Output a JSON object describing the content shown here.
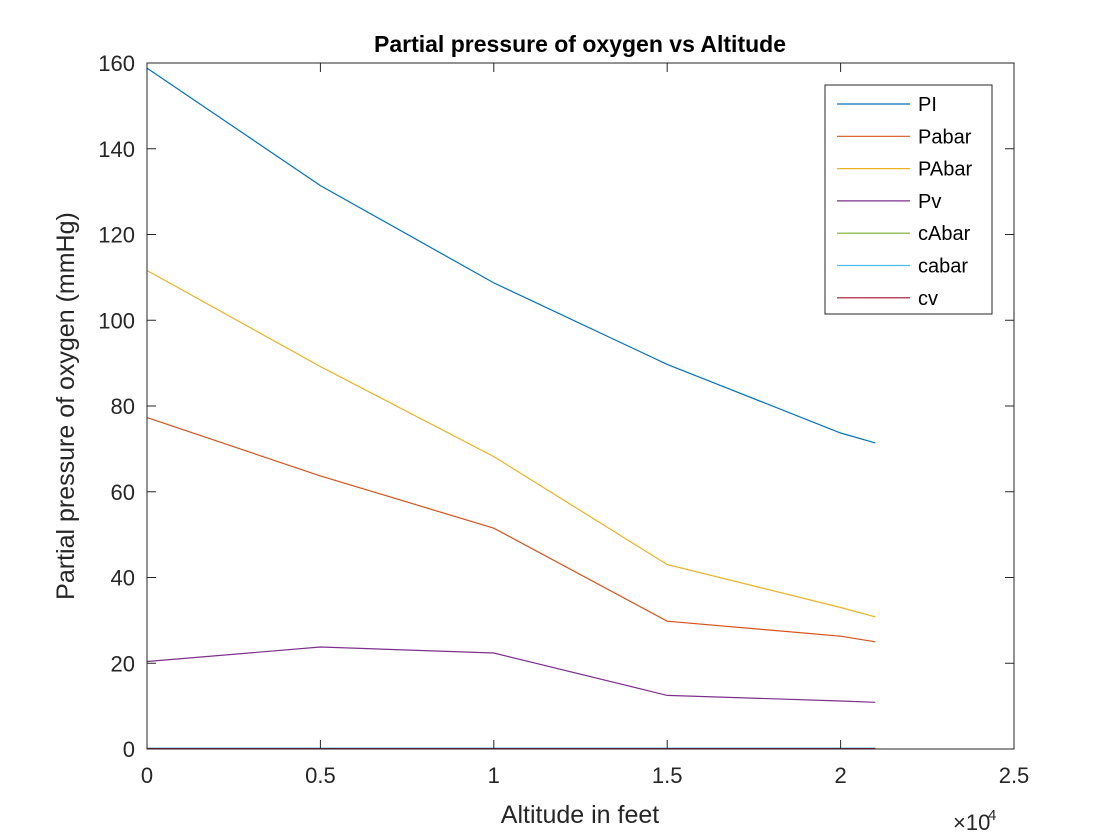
{
  "chart_data": {
    "type": "line",
    "title": "Partial pressure of oxygen vs Altitude",
    "xlabel": "Altitude in feet",
    "ylabel": "Partial pressure of oxygen (mmHg)",
    "x_exponent_label": "×10",
    "x_exponent_power": "4",
    "xlim": [
      0,
      25000
    ],
    "ylim": [
      0,
      160
    ],
    "xticks": [
      0,
      5000,
      10000,
      15000,
      20000,
      25000
    ],
    "xtick_labels": [
      "0",
      "0.5",
      "1",
      "1.5",
      "2",
      "2.5"
    ],
    "yticks": [
      0,
      20,
      40,
      60,
      80,
      100,
      120,
      140,
      160
    ],
    "ytick_labels": [
      "0",
      "20",
      "40",
      "60",
      "80",
      "100",
      "120",
      "140",
      "160"
    ],
    "grid": false,
    "legend_position": "top-right",
    "x": [
      0,
      5000,
      10000,
      15000,
      20000,
      21000
    ],
    "series": [
      {
        "name": "PI",
        "color": "#0072BD",
        "values": [
          158.8,
          131.4,
          108.7,
          89.7,
          73.7,
          71.4
        ]
      },
      {
        "name": "Pabar",
        "color": "#D95319",
        "values": [
          77.3,
          63.7,
          51.5,
          29.8,
          26.3,
          25.0
        ]
      },
      {
        "name": "PAbar",
        "color": "#EDB120",
        "values": [
          111.6,
          89.2,
          68.2,
          43.0,
          33.0,
          30.8
        ]
      },
      {
        "name": "Pv",
        "color": "#7E2F8E",
        "values": [
          20.4,
          23.8,
          22.4,
          12.5,
          11.2,
          10.9
        ]
      },
      {
        "name": "cAbar",
        "color": "#77AC30",
        "values": [
          0.2,
          0.2,
          0.2,
          0.2,
          0.2,
          0.2
        ]
      },
      {
        "name": "cabar",
        "color": "#4DBEEE",
        "values": [
          0.2,
          0.2,
          0.2,
          0.2,
          0.2,
          0.2
        ]
      },
      {
        "name": "cv",
        "color": "#A2142F",
        "values": [
          0.1,
          0.1,
          0.1,
          0.1,
          0.1,
          0.1
        ]
      }
    ]
  }
}
